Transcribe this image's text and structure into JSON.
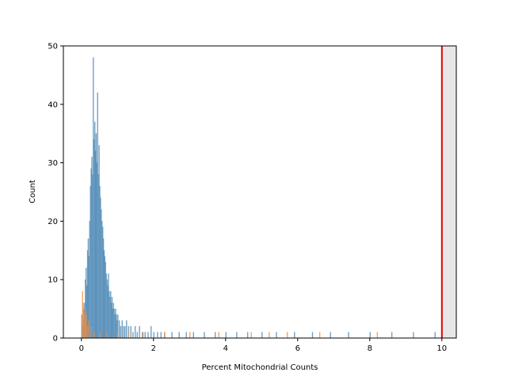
{
  "chart_data": {
    "type": "bar",
    "xlabel": "Percent Mitochondrial Counts",
    "ylabel": "Count",
    "xlim": [
      -0.5,
      10.4
    ],
    "ylim": [
      0,
      50
    ],
    "xticks": [
      0,
      2,
      4,
      6,
      8,
      10
    ],
    "yticks": [
      0,
      10,
      20,
      30,
      40,
      50
    ],
    "grid": false,
    "legend": "none",
    "threshold": {
      "x": 10,
      "color": "#e00000"
    },
    "shaded_region": {
      "x_from": 10,
      "x_to": 10.4,
      "color": "#e6e6e6"
    },
    "series": [
      {
        "color": "#4a86b3",
        "bin_width": 0.02,
        "bins": [
          [
            0.0,
            4
          ],
          [
            0.02,
            2
          ],
          [
            0.04,
            3
          ],
          [
            0.06,
            5
          ],
          [
            0.08,
            6
          ],
          [
            0.1,
            10
          ],
          [
            0.12,
            12
          ],
          [
            0.14,
            9
          ],
          [
            0.16,
            15
          ],
          [
            0.18,
            17
          ],
          [
            0.2,
            14
          ],
          [
            0.22,
            20
          ],
          [
            0.24,
            26
          ],
          [
            0.26,
            29
          ],
          [
            0.28,
            31
          ],
          [
            0.3,
            28
          ],
          [
            0.32,
            48
          ],
          [
            0.34,
            34
          ],
          [
            0.36,
            37
          ],
          [
            0.38,
            32
          ],
          [
            0.4,
            35
          ],
          [
            0.42,
            30
          ],
          [
            0.44,
            42
          ],
          [
            0.46,
            28
          ],
          [
            0.48,
            33
          ],
          [
            0.5,
            26
          ],
          [
            0.52,
            24
          ],
          [
            0.54,
            22
          ],
          [
            0.56,
            20
          ],
          [
            0.58,
            19
          ],
          [
            0.6,
            17
          ],
          [
            0.62,
            15
          ],
          [
            0.64,
            14
          ],
          [
            0.66,
            13
          ],
          [
            0.68,
            11
          ],
          [
            0.7,
            10
          ],
          [
            0.72,
            9
          ],
          [
            0.74,
            11
          ],
          [
            0.76,
            8
          ],
          [
            0.78,
            7
          ],
          [
            0.8,
            8
          ],
          [
            0.82,
            6
          ],
          [
            0.84,
            7
          ],
          [
            0.86,
            5
          ],
          [
            0.88,
            6
          ],
          [
            0.9,
            5
          ],
          [
            0.92,
            4
          ],
          [
            0.94,
            5
          ],
          [
            0.96,
            4
          ],
          [
            0.98,
            3
          ],
          [
            1.0,
            4
          ],
          [
            1.04,
            3
          ],
          [
            1.08,
            2
          ],
          [
            1.12,
            3
          ],
          [
            1.16,
            2
          ],
          [
            1.2,
            2
          ],
          [
            1.24,
            3
          ],
          [
            1.3,
            2
          ],
          [
            1.36,
            2
          ],
          [
            1.42,
            1
          ],
          [
            1.48,
            2
          ],
          [
            1.54,
            1
          ],
          [
            1.6,
            2
          ],
          [
            1.68,
            1
          ],
          [
            1.76,
            1
          ],
          [
            1.84,
            1
          ],
          [
            1.92,
            2
          ],
          [
            2.0,
            1
          ],
          [
            2.1,
            1
          ],
          [
            2.2,
            1
          ],
          [
            2.3,
            1
          ],
          [
            2.5,
            1
          ],
          [
            2.7,
            1
          ],
          [
            2.9,
            1
          ],
          [
            3.1,
            1
          ],
          [
            3.4,
            1
          ],
          [
            3.7,
            1
          ],
          [
            4.0,
            1
          ],
          [
            4.3,
            1
          ],
          [
            4.6,
            1
          ],
          [
            5.0,
            1
          ],
          [
            5.4,
            1
          ],
          [
            5.9,
            1
          ],
          [
            6.4,
            1
          ],
          [
            6.9,
            1
          ],
          [
            7.4,
            1
          ],
          [
            8.0,
            1
          ],
          [
            8.6,
            1
          ],
          [
            9.2,
            1
          ],
          [
            9.8,
            1
          ]
        ]
      },
      {
        "color": "#f08a3a",
        "bin_width": 0.02,
        "bins": [
          [
            0.02,
            8
          ],
          [
            0.04,
            6
          ],
          [
            0.06,
            4
          ],
          [
            0.08,
            5
          ],
          [
            0.1,
            3
          ],
          [
            0.12,
            4
          ],
          [
            0.16,
            2
          ],
          [
            0.2,
            3
          ],
          [
            0.26,
            2
          ],
          [
            0.34,
            1
          ],
          [
            0.5,
            1
          ],
          [
            0.7,
            1
          ],
          [
            1.0,
            1
          ],
          [
            1.3,
            1
          ],
          [
            1.7,
            1
          ],
          [
            2.3,
            1
          ],
          [
            3.0,
            1
          ],
          [
            3.8,
            1
          ],
          [
            4.7,
            1
          ],
          [
            5.2,
            1
          ],
          [
            5.7,
            1
          ],
          [
            6.6,
            1
          ],
          [
            8.2,
            1
          ]
        ]
      }
    ]
  }
}
